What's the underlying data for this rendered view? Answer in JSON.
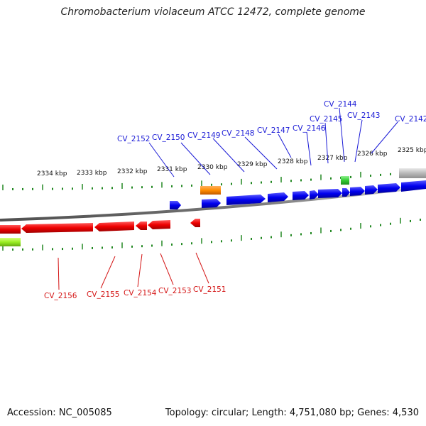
{
  "title": "Chromobacterium violaceum ATCC 12472, complete genome",
  "accession_text": "Accession: NC_005085",
  "topology_text": "Topology: circular; Length: 4,751,080 bp; Genes: 4,530",
  "kbp_ticks": [
    "2334 kbp",
    "2333 kbp",
    "2332 kbp",
    "2331 kbp",
    "2330 kbp",
    "2329 kbp",
    "2328 kbp",
    "2327 kbp",
    "2326 kbp",
    "2325 kbp"
  ],
  "top_labels": [
    "CV_2152",
    "CV_2150",
    "CV_2149",
    "CV_2148",
    "CV_2147",
    "CV_2146",
    "CV_2145",
    "CV_2144",
    "CV_2143",
    "CV_2142"
  ],
  "bottom_labels": [
    "CV_2156",
    "CV_2155",
    "CV_2154",
    "CV_2153",
    "CV_2151"
  ],
  "colors": {
    "forward_gene": "#0000ee",
    "reverse_gene": "#ee0000",
    "rna_gene": "#ff8c00",
    "misc_feature": "#33cc33",
    "label_forward": "#1a1ad6",
    "label_reverse": "#d41414",
    "tick": "#228822",
    "backbone": "#888888"
  }
}
